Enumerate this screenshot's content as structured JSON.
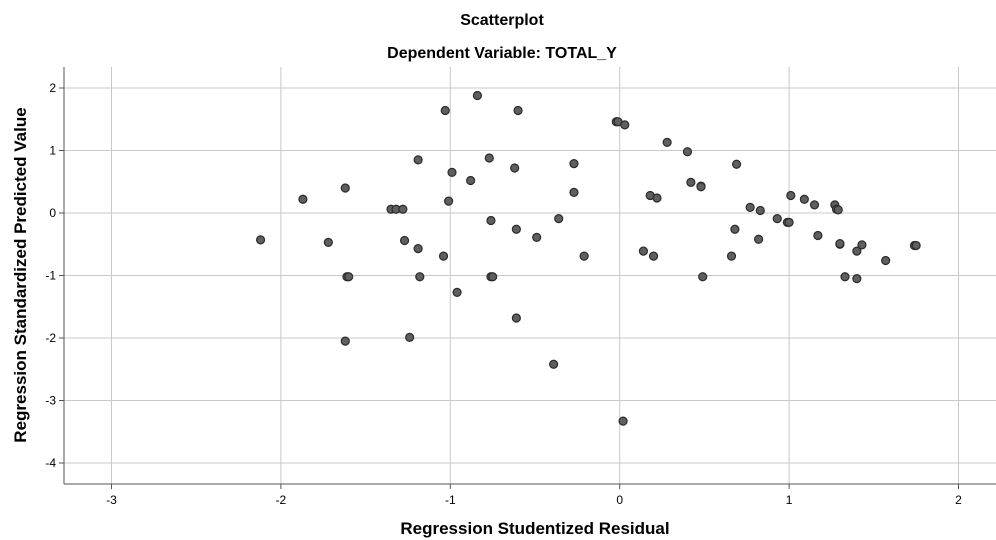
{
  "chart_data": {
    "type": "scatter",
    "title": "Scatterplot",
    "subtitle": "Dependent Variable: TOTAL_Y",
    "xlabel": "Regression Studentized Residual",
    "ylabel": "Regression Standardized Predicted Value",
    "xlim": [
      -3.3,
      2.2
    ],
    "ylim": [
      -4.3,
      2.3
    ],
    "x_ticks": [
      -3,
      -2,
      -1,
      0,
      1,
      2
    ],
    "y_ticks": [
      2,
      1,
      0,
      -1,
      -2,
      -3,
      -4
    ],
    "grid": true,
    "marker_color": "#5f5f5f",
    "marker_edge": "#2b2b2b",
    "points": [
      {
        "x": -2.12,
        "y": -0.43
      },
      {
        "x": -1.87,
        "y": 0.22
      },
      {
        "x": -1.72,
        "y": -0.47
      },
      {
        "x": -1.62,
        "y": 0.4
      },
      {
        "x": -1.61,
        "y": -1.02
      },
      {
        "x": -1.6,
        "y": -1.02
      },
      {
        "x": -1.62,
        "y": -2.05
      },
      {
        "x": -1.35,
        "y": 0.06
      },
      {
        "x": -1.32,
        "y": 0.06
      },
      {
        "x": -1.28,
        "y": 0.06
      },
      {
        "x": -1.27,
        "y": -0.44
      },
      {
        "x": -1.24,
        "y": -1.99
      },
      {
        "x": -1.19,
        "y": 0.85
      },
      {
        "x": -1.19,
        "y": -0.57
      },
      {
        "x": -1.18,
        "y": -1.02
      },
      {
        "x": -1.04,
        "y": -0.69
      },
      {
        "x": -1.03,
        "y": 1.64
      },
      {
        "x": -1.01,
        "y": 0.19
      },
      {
        "x": -0.99,
        "y": 0.65
      },
      {
        "x": -0.96,
        "y": -1.27
      },
      {
        "x": -0.88,
        "y": 0.52
      },
      {
        "x": -0.84,
        "y": 1.88
      },
      {
        "x": -0.77,
        "y": 0.88
      },
      {
        "x": -0.76,
        "y": -0.12
      },
      {
        "x": -0.76,
        "y": -1.02
      },
      {
        "x": -0.75,
        "y": -1.02
      },
      {
        "x": -0.62,
        "y": 0.72
      },
      {
        "x": -0.61,
        "y": -0.26
      },
      {
        "x": -0.61,
        "y": -1.68
      },
      {
        "x": -0.6,
        "y": 1.64
      },
      {
        "x": -0.49,
        "y": -0.39
      },
      {
        "x": -0.39,
        "y": -2.42
      },
      {
        "x": -0.36,
        "y": -0.09
      },
      {
        "x": -0.27,
        "y": 0.79
      },
      {
        "x": -0.27,
        "y": 0.33
      },
      {
        "x": -0.21,
        "y": -0.69
      },
      {
        "x": -0.02,
        "y": 1.46
      },
      {
        "x": -0.01,
        "y": 1.46
      },
      {
        "x": 0.03,
        "y": 1.41
      },
      {
        "x": 0.02,
        "y": -3.33
      },
      {
        "x": 0.14,
        "y": -0.61
      },
      {
        "x": 0.18,
        "y": 0.28
      },
      {
        "x": 0.2,
        "y": -0.69
      },
      {
        "x": 0.22,
        "y": 0.24
      },
      {
        "x": 0.28,
        "y": 1.13
      },
      {
        "x": 0.4,
        "y": 0.98
      },
      {
        "x": 0.42,
        "y": 0.49
      },
      {
        "x": 0.48,
        "y": 0.43
      },
      {
        "x": 0.48,
        "y": 0.42
      },
      {
        "x": 0.49,
        "y": -1.02
      },
      {
        "x": 0.66,
        "y": -0.69
      },
      {
        "x": 0.68,
        "y": -0.26
      },
      {
        "x": 0.69,
        "y": 0.78
      },
      {
        "x": 0.77,
        "y": 0.09
      },
      {
        "x": 0.82,
        "y": -0.42
      },
      {
        "x": 0.83,
        "y": 0.04
      },
      {
        "x": 0.93,
        "y": -0.09
      },
      {
        "x": 0.99,
        "y": -0.15
      },
      {
        "x": 1.0,
        "y": -0.15
      },
      {
        "x": 1.01,
        "y": 0.28
      },
      {
        "x": 1.09,
        "y": 0.22
      },
      {
        "x": 1.15,
        "y": 0.13
      },
      {
        "x": 1.17,
        "y": -0.36
      },
      {
        "x": 1.27,
        "y": 0.13
      },
      {
        "x": 1.28,
        "y": 0.06
      },
      {
        "x": 1.29,
        "y": 0.05
      },
      {
        "x": 1.3,
        "y": -0.5
      },
      {
        "x": 1.3,
        "y": -0.49
      },
      {
        "x": 1.33,
        "y": -1.02
      },
      {
        "x": 1.4,
        "y": -0.61
      },
      {
        "x": 1.4,
        "y": -1.05
      },
      {
        "x": 1.43,
        "y": -0.51
      },
      {
        "x": 1.57,
        "y": -0.76
      },
      {
        "x": 1.74,
        "y": -0.52
      },
      {
        "x": 1.75,
        "y": -0.52
      }
    ]
  }
}
